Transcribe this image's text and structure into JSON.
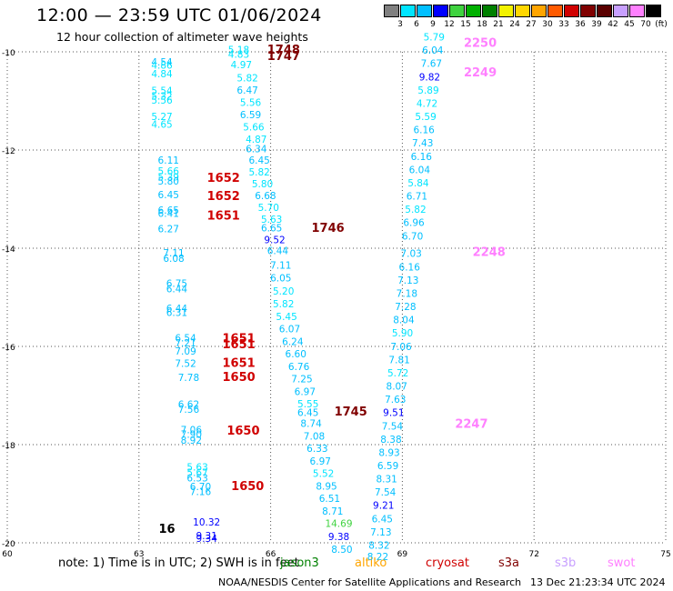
{
  "header": {
    "title": "12:00 — 23:59 UTC 01/06/2024",
    "subtitle": "12 hour collection of altimeter wave heights"
  },
  "legend": {
    "unit": "(ft)",
    "colors": [
      "#808080",
      "#00e5ff",
      "#00bfff",
      "#0000ff",
      "#3fd23f",
      "#00b000",
      "#008000",
      "#f2f200",
      "#ffd700",
      "#ffa500",
      "#ff5a00",
      "#d00000",
      "#800000",
      "#5a0000",
      "#c8a0ff",
      "#ff80ff",
      "#000000"
    ],
    "labels": [
      "3",
      "6",
      "9",
      "12",
      "15",
      "18",
      "21",
      "24",
      "27",
      "30",
      "33",
      "36",
      "39",
      "42",
      "45",
      "70"
    ]
  },
  "axes": {
    "x_ticks": [
      "60",
      "63",
      "66",
      "69",
      "72",
      "75"
    ],
    "y_ticks": [
      "-10",
      "-12",
      "-14",
      "-16",
      "-18",
      "-20"
    ],
    "xlim": [
      60,
      75
    ],
    "ylim": [
      -20,
      -10
    ]
  },
  "observations": [
    {
      "lon": 63.28,
      "lat": -10.28,
      "v": "4.54",
      "c": "#00bfff"
    },
    {
      "lon": 63.28,
      "lat": -10.34,
      "v": "4.86",
      "c": "#00e5ff"
    },
    {
      "lon": 63.28,
      "lat": -10.52,
      "v": "4.84",
      "c": "#00e5ff"
    },
    {
      "lon": 63.28,
      "lat": -10.86,
      "v": "5.54",
      "c": "#00e5ff"
    },
    {
      "lon": 63.28,
      "lat": -10.97,
      "v": "5.32",
      "c": "#00e5ff"
    },
    {
      "lon": 63.28,
      "lat": -11.06,
      "v": "5.56",
      "c": "#00e5ff"
    },
    {
      "lon": 63.28,
      "lat": -11.39,
      "v": "5.27",
      "c": "#00e5ff"
    },
    {
      "lon": 63.28,
      "lat": -11.55,
      "v": "4.65",
      "c": "#00e5ff"
    },
    {
      "lon": 63.43,
      "lat": -12.28,
      "v": "6.11",
      "c": "#00bfff"
    },
    {
      "lon": 63.43,
      "lat": -12.5,
      "v": "5.66",
      "c": "#00e5ff"
    },
    {
      "lon": 63.43,
      "lat": -12.62,
      "v": "5.39",
      "c": "#00e5ff"
    },
    {
      "lon": 63.43,
      "lat": -12.7,
      "v": "5.80",
      "c": "#00bfff"
    },
    {
      "lon": 63.43,
      "lat": -12.98,
      "v": "6.45",
      "c": "#00bfff"
    },
    {
      "lon": 63.43,
      "lat": -13.3,
      "v": "6.65",
      "c": "#00bfff"
    },
    {
      "lon": 63.43,
      "lat": -13.36,
      "v": "6.41",
      "c": "#00bfff"
    },
    {
      "lon": 63.43,
      "lat": -13.68,
      "v": "6.27",
      "c": "#00bfff"
    },
    {
      "lon": 63.55,
      "lat": -14.17,
      "v": "7.11",
      "c": "#00bfff"
    },
    {
      "lon": 63.55,
      "lat": -14.28,
      "v": "6.08",
      "c": "#00bfff"
    },
    {
      "lon": 63.62,
      "lat": -14.79,
      "v": "6.75",
      "c": "#00bfff"
    },
    {
      "lon": 63.62,
      "lat": -14.9,
      "v": "6.44",
      "c": "#00bfff"
    },
    {
      "lon": 63.62,
      "lat": -15.3,
      "v": "6.44",
      "c": "#00bfff"
    },
    {
      "lon": 63.62,
      "lat": -15.38,
      "v": "6.31",
      "c": "#00bfff"
    },
    {
      "lon": 63.82,
      "lat": -15.9,
      "v": "6.54",
      "c": "#00bfff"
    },
    {
      "lon": 63.82,
      "lat": -16.0,
      "v": "7.21",
      "c": "#00bfff"
    },
    {
      "lon": 63.82,
      "lat": -16.17,
      "v": "7.09",
      "c": "#00bfff"
    },
    {
      "lon": 63.82,
      "lat": -16.42,
      "v": "7.52",
      "c": "#00bfff"
    },
    {
      "lon": 63.89,
      "lat": -16.7,
      "v": "7.78",
      "c": "#00bfff"
    },
    {
      "lon": 63.89,
      "lat": -17.25,
      "v": "6.62",
      "c": "#00bfff"
    },
    {
      "lon": 63.89,
      "lat": -17.35,
      "v": "7.56",
      "c": "#00bfff"
    },
    {
      "lon": 63.95,
      "lat": -17.77,
      "v": "7.06",
      "c": "#00bfff"
    },
    {
      "lon": 63.95,
      "lat": -17.86,
      "v": "7.90",
      "c": "#00bfff"
    },
    {
      "lon": 63.95,
      "lat": -17.98,
      "v": "8.92",
      "c": "#00bfff"
    },
    {
      "lon": 64.09,
      "lat": -18.53,
      "v": "5.63",
      "c": "#00e5ff"
    },
    {
      "lon": 64.09,
      "lat": -18.64,
      "v": "5.67",
      "c": "#00e5ff"
    },
    {
      "lon": 64.09,
      "lat": -18.75,
      "v": "6.53",
      "c": "#00bfff"
    },
    {
      "lon": 64.16,
      "lat": -18.93,
      "v": "6.70",
      "c": "#00bfff"
    },
    {
      "lon": 64.16,
      "lat": -19.03,
      "v": "7.16",
      "c": "#00bfff"
    },
    {
      "lon": 64.23,
      "lat": -19.65,
      "v": "10.32",
      "c": "#0000ff"
    },
    {
      "lon": 64.3,
      "lat": -19.93,
      "v": "9.31",
      "c": "#0000ff"
    },
    {
      "lon": 64.3,
      "lat": -19.98,
      "v": "9.34",
      "c": "#0000ff"
    },
    {
      "lon": 65.03,
      "lat": -10.03,
      "v": "5.18",
      "c": "#00e5ff"
    },
    {
      "lon": 65.03,
      "lat": -10.12,
      "v": "4.83",
      "c": "#00e5ff"
    },
    {
      "lon": 65.09,
      "lat": -10.33,
      "v": "4.97",
      "c": "#00e5ff"
    },
    {
      "lon": 65.23,
      "lat": -10.6,
      "v": "5.82",
      "c": "#00e5ff"
    },
    {
      "lon": 65.23,
      "lat": -10.85,
      "v": "6.47",
      "c": "#00bfff"
    },
    {
      "lon": 65.3,
      "lat": -11.1,
      "v": "5.56",
      "c": "#00e5ff"
    },
    {
      "lon": 65.3,
      "lat": -11.35,
      "v": "6.59",
      "c": "#00bfff"
    },
    {
      "lon": 65.37,
      "lat": -11.6,
      "v": "5.66",
      "c": "#00e5ff"
    },
    {
      "lon": 65.43,
      "lat": -11.85,
      "v": "4.87",
      "c": "#00e5ff"
    },
    {
      "lon": 65.43,
      "lat": -12.05,
      "v": "6.34",
      "c": "#00bfff"
    },
    {
      "lon": 65.5,
      "lat": -12.28,
      "v": "6.45",
      "c": "#00bfff"
    },
    {
      "lon": 65.5,
      "lat": -12.52,
      "v": "5.82",
      "c": "#00e5ff"
    },
    {
      "lon": 65.57,
      "lat": -12.76,
      "v": "5.80",
      "c": "#00e5ff"
    },
    {
      "lon": 65.64,
      "lat": -13.0,
      "v": "6.68",
      "c": "#00bfff"
    },
    {
      "lon": 65.71,
      "lat": -13.24,
      "v": "5.70",
      "c": "#00e5ff"
    },
    {
      "lon": 65.78,
      "lat": -13.48,
      "v": "5.63",
      "c": "#00e5ff"
    },
    {
      "lon": 65.78,
      "lat": -13.66,
      "v": "6.65",
      "c": "#00bfff"
    },
    {
      "lon": 65.85,
      "lat": -13.9,
      "v": "9.52",
      "c": "#0000ff"
    },
    {
      "lon": 65.92,
      "lat": -14.12,
      "v": "6.44",
      "c": "#00bfff"
    },
    {
      "lon": 65.99,
      "lat": -14.42,
      "v": "7.11",
      "c": "#00bfff"
    },
    {
      "lon": 65.99,
      "lat": -14.68,
      "v": "6.05",
      "c": "#00bfff"
    },
    {
      "lon": 66.05,
      "lat": -14.94,
      "v": "5.20",
      "c": "#00e5ff"
    },
    {
      "lon": 66.05,
      "lat": -15.2,
      "v": "5.82",
      "c": "#00e5ff"
    },
    {
      "lon": 66.12,
      "lat": -15.46,
      "v": "5.45",
      "c": "#00e5ff"
    },
    {
      "lon": 66.19,
      "lat": -15.71,
      "v": "6.07",
      "c": "#00bfff"
    },
    {
      "lon": 66.26,
      "lat": -15.97,
      "v": "6.24",
      "c": "#00bfff"
    },
    {
      "lon": 66.33,
      "lat": -16.22,
      "v": "6.60",
      "c": "#00bfff"
    },
    {
      "lon": 66.4,
      "lat": -16.48,
      "v": "6.76",
      "c": "#00bfff"
    },
    {
      "lon": 66.47,
      "lat": -16.73,
      "v": "7.25",
      "c": "#00bfff"
    },
    {
      "lon": 66.54,
      "lat": -16.99,
      "v": "6.97",
      "c": "#00bfff"
    },
    {
      "lon": 66.61,
      "lat": -17.24,
      "v": "5.55",
      "c": "#00e5ff"
    },
    {
      "lon": 66.61,
      "lat": -17.42,
      "v": "6.45",
      "c": "#00bfff"
    },
    {
      "lon": 66.68,
      "lat": -17.64,
      "v": "8.74",
      "c": "#00bfff"
    },
    {
      "lon": 66.75,
      "lat": -17.9,
      "v": "7.08",
      "c": "#00bfff"
    },
    {
      "lon": 66.82,
      "lat": -18.15,
      "v": "6.33",
      "c": "#00bfff"
    },
    {
      "lon": 66.89,
      "lat": -18.41,
      "v": "6.97",
      "c": "#00bfff"
    },
    {
      "lon": 66.96,
      "lat": -18.66,
      "v": "5.52",
      "c": "#00e5ff"
    },
    {
      "lon": 67.03,
      "lat": -18.92,
      "v": "8.95",
      "c": "#00bfff"
    },
    {
      "lon": 67.1,
      "lat": -19.17,
      "v": "6.51",
      "c": "#00bfff"
    },
    {
      "lon": 67.17,
      "lat": -19.43,
      "v": "8.71",
      "c": "#00bfff"
    },
    {
      "lon": 67.24,
      "lat": -19.68,
      "v": "14.69",
      "c": "#3fd23f"
    },
    {
      "lon": 67.31,
      "lat": -19.94,
      "v": "9.38",
      "c": "#0000ff"
    },
    {
      "lon": 67.38,
      "lat": -20.2,
      "v": "8.50",
      "c": "#00bfff"
    },
    {
      "lon": 68.2,
      "lat": -20.35,
      "v": "8.22",
      "c": "#00bfff"
    },
    {
      "lon": 68.23,
      "lat": -20.12,
      "v": "8.32",
      "c": "#00bfff"
    },
    {
      "lon": 68.27,
      "lat": -19.85,
      "v": "7.13",
      "c": "#00bfff"
    },
    {
      "lon": 68.3,
      "lat": -19.58,
      "v": "6.45",
      "c": "#00bfff"
    },
    {
      "lon": 68.33,
      "lat": -19.31,
      "v": "9.21",
      "c": "#0000ff"
    },
    {
      "lon": 68.37,
      "lat": -19.04,
      "v": "7.54",
      "c": "#00bfff"
    },
    {
      "lon": 68.4,
      "lat": -18.77,
      "v": "8.31",
      "c": "#00bfff"
    },
    {
      "lon": 68.43,
      "lat": -18.5,
      "v": "6.59",
      "c": "#00bfff"
    },
    {
      "lon": 68.46,
      "lat": -18.23,
      "v": "8.93",
      "c": "#00bfff"
    },
    {
      "lon": 68.5,
      "lat": -17.96,
      "v": "8.38",
      "c": "#00bfff"
    },
    {
      "lon": 68.53,
      "lat": -17.69,
      "v": "7.54",
      "c": "#00bfff"
    },
    {
      "lon": 68.56,
      "lat": -17.42,
      "v": "9.51",
      "c": "#0000ff"
    },
    {
      "lon": 68.6,
      "lat": -17.15,
      "v": "7.63",
      "c": "#00bfff"
    },
    {
      "lon": 68.63,
      "lat": -16.88,
      "v": "8.07",
      "c": "#00bfff"
    },
    {
      "lon": 68.66,
      "lat": -16.61,
      "v": "5.72",
      "c": "#00e5ff"
    },
    {
      "lon": 68.69,
      "lat": -16.34,
      "v": "7.81",
      "c": "#00bfff"
    },
    {
      "lon": 68.73,
      "lat": -16.07,
      "v": "7.06",
      "c": "#00bfff"
    },
    {
      "lon": 68.76,
      "lat": -15.8,
      "v": "5.90",
      "c": "#00e5ff"
    },
    {
      "lon": 68.79,
      "lat": -15.53,
      "v": "8.04",
      "c": "#00bfff"
    },
    {
      "lon": 68.83,
      "lat": -15.26,
      "v": "7.28",
      "c": "#00bfff"
    },
    {
      "lon": 68.86,
      "lat": -14.99,
      "v": "7.18",
      "c": "#00bfff"
    },
    {
      "lon": 68.89,
      "lat": -14.72,
      "v": "7.13",
      "c": "#00bfff"
    },
    {
      "lon": 68.92,
      "lat": -14.45,
      "v": "6.16",
      "c": "#00bfff"
    },
    {
      "lon": 68.96,
      "lat": -14.18,
      "v": "7.03",
      "c": "#00bfff"
    },
    {
      "lon": 68.99,
      "lat": -13.82,
      "v": "6.70",
      "c": "#00bfff"
    },
    {
      "lon": 69.02,
      "lat": -13.55,
      "v": "6.96",
      "c": "#00bfff"
    },
    {
      "lon": 69.06,
      "lat": -13.28,
      "v": "5.82",
      "c": "#00e5ff"
    },
    {
      "lon": 69.09,
      "lat": -13.01,
      "v": "6.71",
      "c": "#00bfff"
    },
    {
      "lon": 69.12,
      "lat": -12.74,
      "v": "5.84",
      "c": "#00e5ff"
    },
    {
      "lon": 69.15,
      "lat": -12.47,
      "v": "6.04",
      "c": "#00bfff"
    },
    {
      "lon": 69.19,
      "lat": -12.2,
      "v": "6.16",
      "c": "#00bfff"
    },
    {
      "lon": 69.22,
      "lat": -11.93,
      "v": "7.43",
      "c": "#00bfff"
    },
    {
      "lon": 69.25,
      "lat": -11.66,
      "v": "6.16",
      "c": "#00bfff"
    },
    {
      "lon": 69.29,
      "lat": -11.39,
      "v": "5.59",
      "c": "#00e5ff"
    },
    {
      "lon": 69.32,
      "lat": -11.12,
      "v": "4.72",
      "c": "#00e5ff"
    },
    {
      "lon": 69.35,
      "lat": -10.85,
      "v": "5.89",
      "c": "#00e5ff"
    },
    {
      "lon": 69.38,
      "lat": -10.58,
      "v": "9.82",
      "c": "#0000ff"
    },
    {
      "lon": 69.42,
      "lat": -10.31,
      "v": "7.67",
      "c": "#00bfff"
    },
    {
      "lon": 69.45,
      "lat": -10.04,
      "v": "6.04",
      "c": "#00bfff"
    },
    {
      "lon": 69.48,
      "lat": -9.77,
      "v": "5.79",
      "c": "#00e5ff"
    }
  ],
  "passes": [
    {
      "lon": 65.92,
      "lat": -10.04,
      "v": "1748",
      "c": "#800000"
    },
    {
      "lon": 65.92,
      "lat": -10.17,
      "v": "1747",
      "c": "#800000"
    },
    {
      "lon": 64.55,
      "lat": -12.65,
      "v": "1652",
      "c": "#d00000"
    },
    {
      "lon": 64.55,
      "lat": -13.02,
      "v": "1652",
      "c": "#d00000"
    },
    {
      "lon": 64.55,
      "lat": -13.42,
      "v": "1651",
      "c": "#d00000"
    },
    {
      "lon": 66.93,
      "lat": -13.67,
      "v": "1746",
      "c": "#800000"
    },
    {
      "lon": 64.9,
      "lat": -15.92,
      "v": "1651",
      "c": "#d00000"
    },
    {
      "lon": 64.9,
      "lat": -16.04,
      "v": "1651",
      "c": "#d00000"
    },
    {
      "lon": 64.9,
      "lat": -16.42,
      "v": "1651",
      "c": "#d00000"
    },
    {
      "lon": 64.9,
      "lat": -16.7,
      "v": "1650",
      "c": "#d00000"
    },
    {
      "lon": 67.45,
      "lat": -17.41,
      "v": "1745",
      "c": "#800000"
    },
    {
      "lon": 65.0,
      "lat": -17.8,
      "v": "1650",
      "c": "#d00000"
    },
    {
      "lon": 65.1,
      "lat": -18.93,
      "v": "1650",
      "c": "#d00000"
    },
    {
      "lon": 70.4,
      "lat": -9.9,
      "v": "2250",
      "c": "#ff80ff"
    },
    {
      "lon": 70.4,
      "lat": -10.5,
      "v": "2249",
      "c": "#ff80ff"
    },
    {
      "lon": 70.6,
      "lat": -14.16,
      "v": "2248",
      "c": "#ff80ff"
    },
    {
      "lon": 70.2,
      "lat": -17.66,
      "v": "2247",
      "c": "#ff80ff"
    },
    {
      "lon": 63.45,
      "lat": -19.8,
      "v": "16",
      "c": "#000000"
    }
  ],
  "footer": {
    "note": "note:  1) Time is in UTC; 2) SWH is in feet",
    "satellites": [
      {
        "name": "jason3",
        "color": "#008000"
      },
      {
        "name": "altiko",
        "color": "#ffa500"
      },
      {
        "name": "cryosat",
        "color": "#d00000"
      },
      {
        "name": "s3a",
        "color": "#800000"
      },
      {
        "name": "s3b",
        "color": "#c8a0ff"
      },
      {
        "name": "swot",
        "color": "#ff80ff"
      }
    ],
    "credit": "NOAA/NESDIS Center for Satellite Applications and Research",
    "timestamp": "13 Dec 21:23:34 UTC 2024"
  }
}
